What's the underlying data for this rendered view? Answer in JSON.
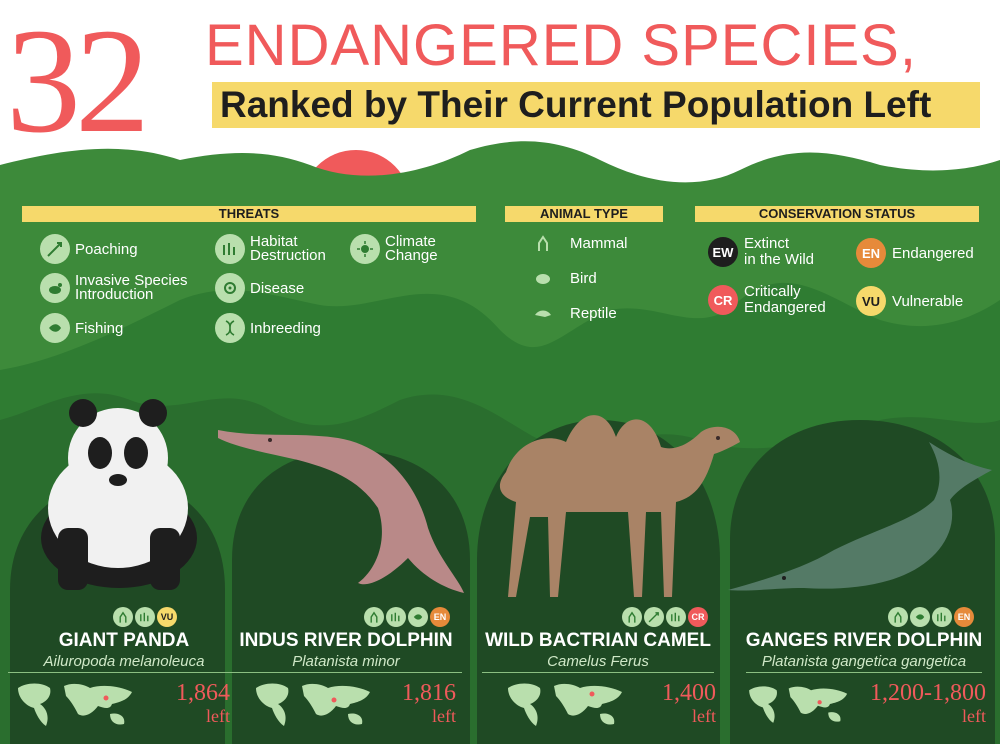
{
  "header": {
    "number": "32",
    "title": "ENDANGERED SPECIES,",
    "subtitle": "Ranked by Their Current Population Left"
  },
  "legend": {
    "threats_title": "THREATS",
    "animal_type_title": "ANIMAL TYPE",
    "status_title": "CONSERVATION  STATUS",
    "threats": {
      "poaching": "Poaching",
      "invasive_1": "Invasive Species",
      "invasive_2": "Introduction",
      "fishing": "Fishing",
      "habitat_1": "Habitat",
      "habitat_2": "Destruction",
      "disease": "Disease",
      "inbreeding": "Inbreeding",
      "climate_1": "Climate",
      "climate_2": "Change"
    },
    "animal_types": {
      "mammal": "Mammal",
      "bird": "Bird",
      "reptile": "Reptile"
    },
    "statuses": {
      "ew_code": "EW",
      "ew_1": "Extinct",
      "ew_2": "in the Wild",
      "cr_code": "CR",
      "cr_1": "Critically",
      "cr_2": "Endangered",
      "en_code": "EN",
      "en_label": "Endangered",
      "vu_code": "VU",
      "vu_label": "Vulnerable"
    },
    "status_colors": {
      "ew": "#1e1e1e",
      "cr": "#f05a5b",
      "en": "#e68a3a",
      "vu": "#f6d96b"
    }
  },
  "species": [
    {
      "name": "GIANT PANDA",
      "scientific": "Ailuropoda melanoleuca",
      "population": "1,864",
      "left_label": "left",
      "status": "VU"
    },
    {
      "name": "INDUS RIVER DOLPHIN",
      "scientific": "Platanista minor",
      "population": "1,816",
      "left_label": "left",
      "status": "EN"
    },
    {
      "name": "WILD BACTRIAN CAMEL",
      "scientific": "Camelus Ferus",
      "population": "1,400",
      "left_label": "left",
      "status": "CR"
    },
    {
      "name": "GANGES RIVER DOLPHIN",
      "scientific": "Platanista gangetica gangetica",
      "population": "1,200-1,800",
      "left_label": "left",
      "status": "EN"
    }
  ],
  "colors": {
    "accent_red": "#f05a5b",
    "highlight_yellow": "#f6d96b",
    "mountain_light": "#3d8a3a",
    "mountain_dark": "#24612a"
  }
}
